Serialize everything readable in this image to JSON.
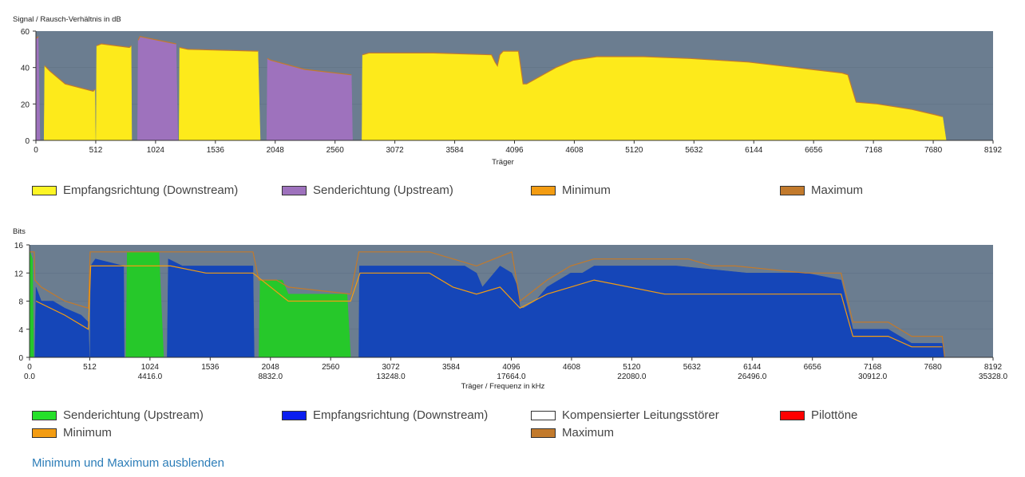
{
  "chart_data": [
    {
      "type": "area",
      "ylabel": "Signal / Rausch-Verhältnis in dB",
      "xlabel": "Träger",
      "xlim": [
        0,
        8192
      ],
      "ylim": [
        0,
        60
      ],
      "x_ticks": [
        "0",
        "512",
        "1024",
        "1536",
        "2048",
        "2560",
        "3072",
        "3584",
        "4096",
        "4608",
        "5120",
        "5632",
        "6144",
        "6656",
        "7168",
        "7680",
        "8192"
      ],
      "y_ticks": [
        "0",
        "20",
        "40",
        "60"
      ],
      "background": "#6b7d90",
      "series": [
        {
          "name": "Senderichtung (Upstream)",
          "color": "#9e72bd",
          "segments": [
            [
              [
                0,
                0
              ],
              [
                5,
                56
              ],
              [
                20,
                57
              ],
              [
                35,
                0
              ]
            ],
            [
              [
                870,
                0
              ],
              [
                875,
                55
              ],
              [
                890,
                57
              ],
              [
                1200,
                53
              ],
              [
                1215,
                0
              ]
            ],
            [
              [
                1975,
                0
              ],
              [
                1982,
                45
              ],
              [
                2010,
                44
              ],
              [
                2300,
                39
              ],
              [
                2700,
                36
              ],
              [
                2710,
                0
              ]
            ]
          ]
        },
        {
          "name": "Empfangsrichtung (Downstream)",
          "color": "#fdea1b",
          "segments": [
            [
              [
                70,
                0
              ],
              [
                75,
                41
              ],
              [
                120,
                38
              ],
              [
                250,
                31
              ],
              [
                490,
                27
              ],
              [
                505,
                28
              ],
              [
                510,
                0
              ]
            ],
            [
              [
                515,
                0
              ],
              [
                520,
                52
              ],
              [
                560,
                53
              ],
              [
                800,
                51
              ],
              [
                815,
                52
              ],
              [
                820,
                0
              ]
            ],
            [
              [
                1225,
                0
              ],
              [
                1230,
                51
              ],
              [
                1300,
                50
              ],
              [
                1900,
                49
              ],
              [
                1920,
                0
              ]
            ],
            [
              [
                2790,
                0
              ],
              [
                2795,
                47
              ],
              [
                2850,
                48
              ],
              [
                3400,
                48
              ],
              [
                3900,
                47
              ],
              [
                3930,
                43
              ],
              [
                3950,
                41
              ],
              [
                3970,
                47
              ],
              [
                4000,
                49
              ],
              [
                4130,
                49
              ],
              [
                4170,
                31
              ],
              [
                4200,
                31
              ],
              [
                4450,
                40
              ],
              [
                4600,
                44
              ],
              [
                4800,
                46
              ],
              [
                5200,
                46
              ],
              [
                5600,
                45
              ],
              [
                6100,
                43
              ],
              [
                6500,
                40
              ],
              [
                6900,
                37
              ],
              [
                6950,
                36
              ],
              [
                7020,
                21
              ],
              [
                7200,
                20
              ],
              [
                7500,
                17
              ],
              [
                7700,
                14
              ],
              [
                7760,
                13
              ],
              [
                7790,
                0
              ]
            ]
          ]
        },
        {
          "name": "Minimum",
          "color": "#f39c12",
          "segments": []
        },
        {
          "name": "Maximum",
          "color": "#c27a2c",
          "segments": []
        }
      ],
      "legend": [
        {
          "name": "Empfangsrichtung (Downstream)",
          "color": "#fdf525"
        },
        {
          "name": "Senderichtung (Upstream)",
          "color": "#9e72bd"
        },
        {
          "name": "Minimum",
          "color": "#f39c12"
        },
        {
          "name": "Maximum",
          "color": "#c27a2c"
        }
      ]
    },
    {
      "type": "area",
      "ylabel": "Bits",
      "xlabel": "Träger / Frequenz in kHz",
      "xlim": [
        0,
        8192
      ],
      "ylim": [
        0,
        16
      ],
      "x_ticks": [
        "0",
        "512",
        "1024",
        "1536",
        "2048",
        "2560",
        "3072",
        "3584",
        "4096",
        "4608",
        "5120",
        "5632",
        "6144",
        "6656",
        "7168",
        "7680",
        "8192"
      ],
      "x_ticks_khz": [
        {
          "x": 0,
          "label": "0.0"
        },
        {
          "x": 1024,
          "label": "4416.0"
        },
        {
          "x": 2048,
          "label": "8832.0"
        },
        {
          "x": 3072,
          "label": "13248.0"
        },
        {
          "x": 4096,
          "label": "17664.0"
        },
        {
          "x": 5120,
          "label": "22080.0"
        },
        {
          "x": 6144,
          "label": "26496.0"
        },
        {
          "x": 7168,
          "label": "30912.0"
        },
        {
          "x": 8192,
          "label": "35328.0"
        }
      ],
      "y_ticks": [
        "0",
        "4",
        "8",
        "12",
        "16"
      ],
      "background": "#6b7d90",
      "series": [
        {
          "name": "Senderichtung (Upstream)",
          "color": "#26c82a",
          "segments": [
            [
              [
                0,
                0
              ],
              [
                5,
                15
              ],
              [
                25,
                14
              ],
              [
                35,
                0
              ]
            ],
            [
              [
                820,
                0
              ],
              [
                830,
                15
              ],
              [
                1100,
                15
              ],
              [
                1140,
                0
              ]
            ],
            [
              [
                1950,
                0
              ],
              [
                1960,
                11
              ],
              [
                2150,
                11
              ],
              [
                2200,
                9
              ],
              [
                2700,
                9
              ],
              [
                2730,
                0
              ]
            ]
          ]
        },
        {
          "name": "Empfangsrichtung (Downstream)",
          "color": "#1546b8",
          "segments": [
            [
              [
                45,
                0
              ],
              [
                55,
                10
              ],
              [
                100,
                8
              ],
              [
                200,
                8
              ],
              [
                300,
                7
              ],
              [
                440,
                6
              ],
              [
                500,
                5
              ],
              [
                510,
                0
              ]
            ],
            [
              [
                515,
                0
              ],
              [
                520,
                13
              ],
              [
                560,
                14
              ],
              [
                800,
                13
              ],
              [
                805,
                0
              ]
            ],
            [
              [
                1170,
                0
              ],
              [
                1180,
                14
              ],
              [
                1300,
                13
              ],
              [
                1900,
                13
              ],
              [
                1910,
                0
              ]
            ],
            [
              [
                2800,
                0
              ],
              [
                2805,
                13
              ],
              [
                3400,
                13
              ],
              [
                3700,
                13
              ],
              [
                3800,
                12
              ],
              [
                3850,
                10
              ],
              [
                3900,
                11
              ],
              [
                4000,
                13
              ],
              [
                4100,
                12
              ],
              [
                4150,
                10
              ],
              [
                4170,
                7
              ],
              [
                4200,
                7
              ],
              [
                4300,
                8
              ],
              [
                4400,
                10
              ],
              [
                4500,
                11
              ],
              [
                4600,
                12
              ],
              [
                4700,
                12
              ],
              [
                4800,
                13
              ],
              [
                5500,
                13
              ],
              [
                6100,
                12
              ],
              [
                6600,
                12
              ],
              [
                6900,
                11
              ],
              [
                7000,
                4
              ],
              [
                7300,
                4
              ],
              [
                7500,
                2
              ],
              [
                7760,
                2
              ],
              [
                7780,
                0
              ]
            ]
          ]
        },
        {
          "name": "Kompensierter Leitungsstörer",
          "color": "#ffffff",
          "segments": []
        },
        {
          "name": "Pilottöne",
          "color": "#ff0000",
          "segments": []
        },
        {
          "name": "Minimum",
          "color": "#f39c12",
          "segments": []
        },
        {
          "name": "Maximum",
          "color": "#c27a2c",
          "segments": []
        }
      ],
      "max_line": [
        [
          0,
          15
        ],
        [
          40,
          15
        ],
        [
          45,
          11
        ],
        [
          100,
          10
        ],
        [
          300,
          8
        ],
        [
          500,
          7
        ],
        [
          515,
          15
        ],
        [
          800,
          15
        ],
        [
          830,
          15
        ],
        [
          1100,
          15
        ],
        [
          1180,
          15
        ],
        [
          1900,
          15
        ],
        [
          1950,
          11
        ],
        [
          2100,
          11
        ],
        [
          2200,
          10
        ],
        [
          2730,
          9
        ],
        [
          2800,
          15
        ],
        [
          3400,
          15
        ],
        [
          3600,
          14
        ],
        [
          3800,
          13
        ],
        [
          3950,
          14
        ],
        [
          4100,
          15
        ],
        [
          4170,
          8
        ],
        [
          4400,
          11
        ],
        [
          4600,
          13
        ],
        [
          4800,
          14
        ],
        [
          5600,
          14
        ],
        [
          5800,
          13
        ],
        [
          6000,
          13
        ],
        [
          6600,
          12
        ],
        [
          6900,
          12
        ],
        [
          7000,
          5
        ],
        [
          7300,
          5
        ],
        [
          7500,
          3
        ],
        [
          7760,
          3
        ],
        [
          7780,
          0
        ]
      ],
      "min_line": [
        [
          55,
          8
        ],
        [
          300,
          6
        ],
        [
          500,
          4
        ],
        [
          520,
          13
        ],
        [
          800,
          13
        ],
        [
          1200,
          13
        ],
        [
          1500,
          12
        ],
        [
          1900,
          12
        ],
        [
          2200,
          8
        ],
        [
          2730,
          8
        ],
        [
          2810,
          12
        ],
        [
          3400,
          12
        ],
        [
          3600,
          10
        ],
        [
          3800,
          9
        ],
        [
          4000,
          10
        ],
        [
          4170,
          7
        ],
        [
          4400,
          9
        ],
        [
          4600,
          10
        ],
        [
          4800,
          11
        ],
        [
          5100,
          10
        ],
        [
          5400,
          9
        ],
        [
          6000,
          9
        ],
        [
          6400,
          9
        ],
        [
          6900,
          9
        ],
        [
          7000,
          3
        ],
        [
          7300,
          3
        ],
        [
          7500,
          1.5
        ],
        [
          7760,
          1.5
        ]
      ],
      "legend": [
        {
          "name": "Senderichtung (Upstream)",
          "color": "#26e02a"
        },
        {
          "name": "Empfangsrichtung (Downstream)",
          "color": "#0a1ef0"
        },
        {
          "name": "Kompensierter Leitungsstörer",
          "color": "#ffffff"
        },
        {
          "name": "Pilottöne",
          "color": "#ff0000"
        },
        {
          "name": "Minimum",
          "color": "#f39c12"
        },
        {
          "name": "Maximum",
          "color": "#c27a2c"
        }
      ]
    }
  ],
  "toggle_link": "Minimum und Maximum ausblenden"
}
